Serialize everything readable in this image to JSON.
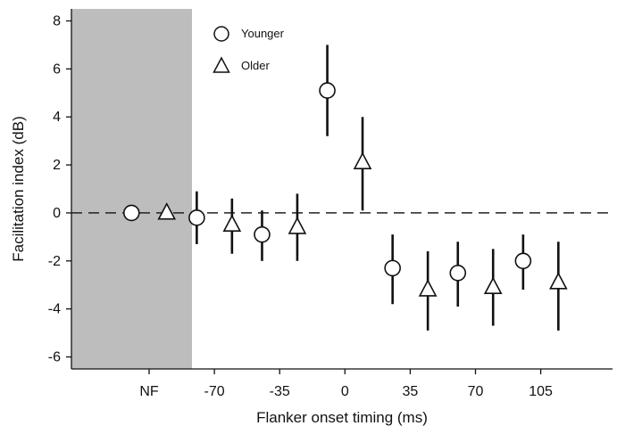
{
  "chart_data": {
    "type": "scatter",
    "title": "",
    "xlabel": "Flanker onset timing (ms)",
    "ylabel": "Facilitation index (dB)",
    "categories": [
      "NF",
      "-70",
      "-35",
      "0",
      "35",
      "70",
      "105"
    ],
    "ylim": [
      -6.5,
      8.5
    ],
    "yticks": [
      -6,
      -4,
      -2,
      0,
      2,
      4,
      6,
      8
    ],
    "reference_line": {
      "y": 0,
      "style": "dashed"
    },
    "shaded_region": {
      "category": "NF",
      "color": "#bdbdbd"
    },
    "grid": false,
    "legend_position": "top-left",
    "series": [
      {
        "name": "Younger",
        "marker": "circle",
        "values": [
          0.0,
          -0.2,
          -0.9,
          5.1,
          -2.3,
          -2.5,
          -2.0
        ],
        "error_low": [
          0.0,
          -1.3,
          -2.0,
          3.2,
          -3.8,
          -3.9,
          -3.2
        ],
        "error_high": [
          0.0,
          0.9,
          0.1,
          7.0,
          -0.9,
          -1.2,
          -0.9
        ]
      },
      {
        "name": "Older",
        "marker": "triangle",
        "values": [
          0.0,
          -0.5,
          -0.6,
          2.1,
          -3.2,
          -3.1,
          -2.9
        ],
        "error_low": [
          0.0,
          -1.7,
          -2.0,
          0.1,
          -4.9,
          -4.7,
          -4.9
        ],
        "error_high": [
          0.0,
          0.6,
          0.8,
          4.0,
          -1.6,
          -1.5,
          -1.2
        ]
      }
    ]
  }
}
